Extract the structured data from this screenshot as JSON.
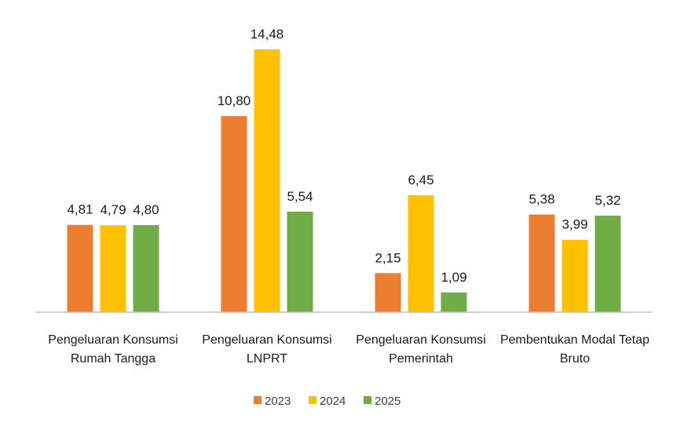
{
  "chart_data": {
    "type": "bar",
    "title": "",
    "xlabel": "",
    "ylabel": "",
    "categories": [
      [
        "Pengeluaran Konsumsi",
        "Rumah Tangga"
      ],
      [
        "Pengeluaran Konsumsi",
        "LNPRT"
      ],
      [
        "Pengeluaran Konsumsi",
        "Pemerintah"
      ],
      [
        "Pembentukan Modal Tetap",
        "Bruto"
      ]
    ],
    "series": [
      {
        "name": "2023",
        "color": "#ED7D31",
        "values": [
          4.81,
          10.8,
          2.15,
          5.38
        ],
        "labels": [
          "4,81",
          "10,80",
          "2,15",
          "5,38"
        ]
      },
      {
        "name": "2024",
        "color": "#FFC000",
        "values": [
          4.79,
          14.48,
          6.45,
          3.99
        ],
        "labels": [
          "4,79",
          "14,48",
          "6,45",
          "3,99"
        ]
      },
      {
        "name": "2025",
        "color": "#70AD47",
        "values": [
          4.8,
          5.54,
          1.09,
          5.32
        ],
        "labels": [
          "4,80",
          "5,54",
          "1,09",
          "5,32"
        ]
      }
    ],
    "ylim": [
      0,
      14.48
    ],
    "grid": false,
    "legend": "bottom"
  }
}
